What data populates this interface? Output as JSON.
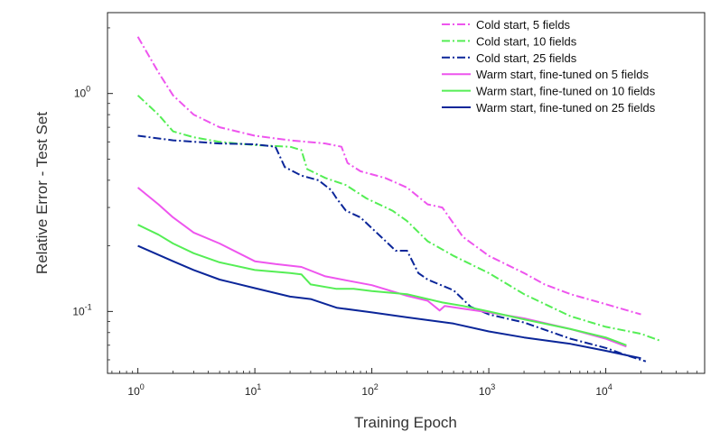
{
  "chart_data": {
    "type": "line",
    "xscale": "log",
    "yscale": "log",
    "xlabel": "Training Epoch",
    "ylabel": "Relative Error - Test Set",
    "xlim": [
      0.55,
      70000
    ],
    "ylim": [
      0.052,
      2.35
    ],
    "xticks": [
      {
        "value": 1,
        "base": "10",
        "exp": "0"
      },
      {
        "value": 10,
        "base": "10",
        "exp": "1"
      },
      {
        "value": 100,
        "base": "10",
        "exp": "2"
      },
      {
        "value": 1000,
        "base": "10",
        "exp": "3"
      },
      {
        "value": 10000,
        "base": "10",
        "exp": "4"
      }
    ],
    "yticks": [
      {
        "value": 0.1,
        "base": "10",
        "exp": "-1"
      },
      {
        "value": 1,
        "base": "10",
        "exp": "0"
      }
    ],
    "legend_position": "top-right",
    "series": [
      {
        "name": "Cold start, 5 fields",
        "color": "#ee55ee",
        "style": "dashdot",
        "points": [
          [
            1,
            1.82
          ],
          [
            1.5,
            1.25
          ],
          [
            2,
            0.98
          ],
          [
            3,
            0.8
          ],
          [
            5,
            0.7
          ],
          [
            10,
            0.64
          ],
          [
            20,
            0.61
          ],
          [
            40,
            0.59
          ],
          [
            55,
            0.57
          ],
          [
            62,
            0.48
          ],
          [
            80,
            0.44
          ],
          [
            130,
            0.41
          ],
          [
            200,
            0.37
          ],
          [
            300,
            0.31
          ],
          [
            400,
            0.3
          ],
          [
            600,
            0.22
          ],
          [
            1000,
            0.18
          ],
          [
            2000,
            0.15
          ],
          [
            3000,
            0.133
          ],
          [
            5000,
            0.12
          ],
          [
            10000,
            0.108
          ],
          [
            20000,
            0.097
          ]
        ]
      },
      {
        "name": "Cold start, 10 fields",
        "color": "#55ee55",
        "style": "dashdot",
        "points": [
          [
            1,
            0.98
          ],
          [
            1.5,
            0.8
          ],
          [
            2,
            0.67
          ],
          [
            3,
            0.63
          ],
          [
            5,
            0.6
          ],
          [
            10,
            0.58
          ],
          [
            20,
            0.57
          ],
          [
            25,
            0.55
          ],
          [
            28,
            0.45
          ],
          [
            40,
            0.41
          ],
          [
            60,
            0.38
          ],
          [
            90,
            0.33
          ],
          [
            150,
            0.29
          ],
          [
            200,
            0.26
          ],
          [
            300,
            0.21
          ],
          [
            500,
            0.18
          ],
          [
            1000,
            0.15
          ],
          [
            2000,
            0.12
          ],
          [
            5000,
            0.095
          ],
          [
            10000,
            0.085
          ],
          [
            20000,
            0.079
          ],
          [
            30000,
            0.073
          ]
        ]
      },
      {
        "name": "Cold start, 25 fields",
        "color": "#0b2699",
        "style": "dashdot",
        "points": [
          [
            1,
            0.64
          ],
          [
            2,
            0.61
          ],
          [
            5,
            0.59
          ],
          [
            10,
            0.585
          ],
          [
            15,
            0.57
          ],
          [
            18,
            0.46
          ],
          [
            25,
            0.42
          ],
          [
            35,
            0.4
          ],
          [
            45,
            0.36
          ],
          [
            50,
            0.33
          ],
          [
            60,
            0.29
          ],
          [
            80,
            0.27
          ],
          [
            120,
            0.22
          ],
          [
            160,
            0.19
          ],
          [
            200,
            0.19
          ],
          [
            250,
            0.15
          ],
          [
            300,
            0.14
          ],
          [
            500,
            0.125
          ],
          [
            700,
            0.105
          ],
          [
            1000,
            0.097
          ],
          [
            2000,
            0.089
          ],
          [
            5000,
            0.075
          ],
          [
            10000,
            0.068
          ],
          [
            15000,
            0.063
          ],
          [
            22000,
            0.059
          ]
        ]
      },
      {
        "name": "Warm start, fine-tuned on 5 fields",
        "color": "#ee55ee",
        "style": "solid",
        "points": [
          [
            1,
            0.37
          ],
          [
            1.5,
            0.31
          ],
          [
            2,
            0.27
          ],
          [
            3,
            0.23
          ],
          [
            5,
            0.205
          ],
          [
            10,
            0.17
          ],
          [
            15,
            0.165
          ],
          [
            25,
            0.16
          ],
          [
            40,
            0.145
          ],
          [
            60,
            0.139
          ],
          [
            100,
            0.132
          ],
          [
            200,
            0.118
          ],
          [
            300,
            0.112
          ],
          [
            380,
            0.101
          ],
          [
            420,
            0.106
          ],
          [
            600,
            0.103
          ],
          [
            1000,
            0.099
          ],
          [
            2000,
            0.093
          ],
          [
            5000,
            0.083
          ],
          [
            10000,
            0.075
          ],
          [
            15000,
            0.069
          ]
        ]
      },
      {
        "name": "Warm start, fine-tuned on 10 fields",
        "color": "#55ee55",
        "style": "solid",
        "points": [
          [
            1,
            0.25
          ],
          [
            1.5,
            0.225
          ],
          [
            2,
            0.205
          ],
          [
            3,
            0.185
          ],
          [
            5,
            0.168
          ],
          [
            10,
            0.155
          ],
          [
            20,
            0.15
          ],
          [
            25,
            0.148
          ],
          [
            30,
            0.133
          ],
          [
            50,
            0.127
          ],
          [
            70,
            0.127
          ],
          [
            100,
            0.124
          ],
          [
            200,
            0.12
          ],
          [
            400,
            0.11
          ],
          [
            600,
            0.106
          ],
          [
            1000,
            0.1
          ],
          [
            2000,
            0.092
          ],
          [
            5000,
            0.083
          ],
          [
            10000,
            0.076
          ],
          [
            15000,
            0.07
          ]
        ]
      },
      {
        "name": "Warm start, fine-tuned on 25 fields",
        "color": "#0b2699",
        "style": "solid",
        "points": [
          [
            1,
            0.2
          ],
          [
            2,
            0.17
          ],
          [
            3,
            0.155
          ],
          [
            5,
            0.14
          ],
          [
            10,
            0.128
          ],
          [
            20,
            0.117
          ],
          [
            30,
            0.114
          ],
          [
            50,
            0.104
          ],
          [
            100,
            0.099
          ],
          [
            200,
            0.094
          ],
          [
            500,
            0.088
          ],
          [
            1000,
            0.081
          ],
          [
            2000,
            0.076
          ],
          [
            5000,
            0.071
          ],
          [
            10000,
            0.066
          ],
          [
            15000,
            0.063
          ],
          [
            20000,
            0.061
          ]
        ]
      }
    ]
  }
}
